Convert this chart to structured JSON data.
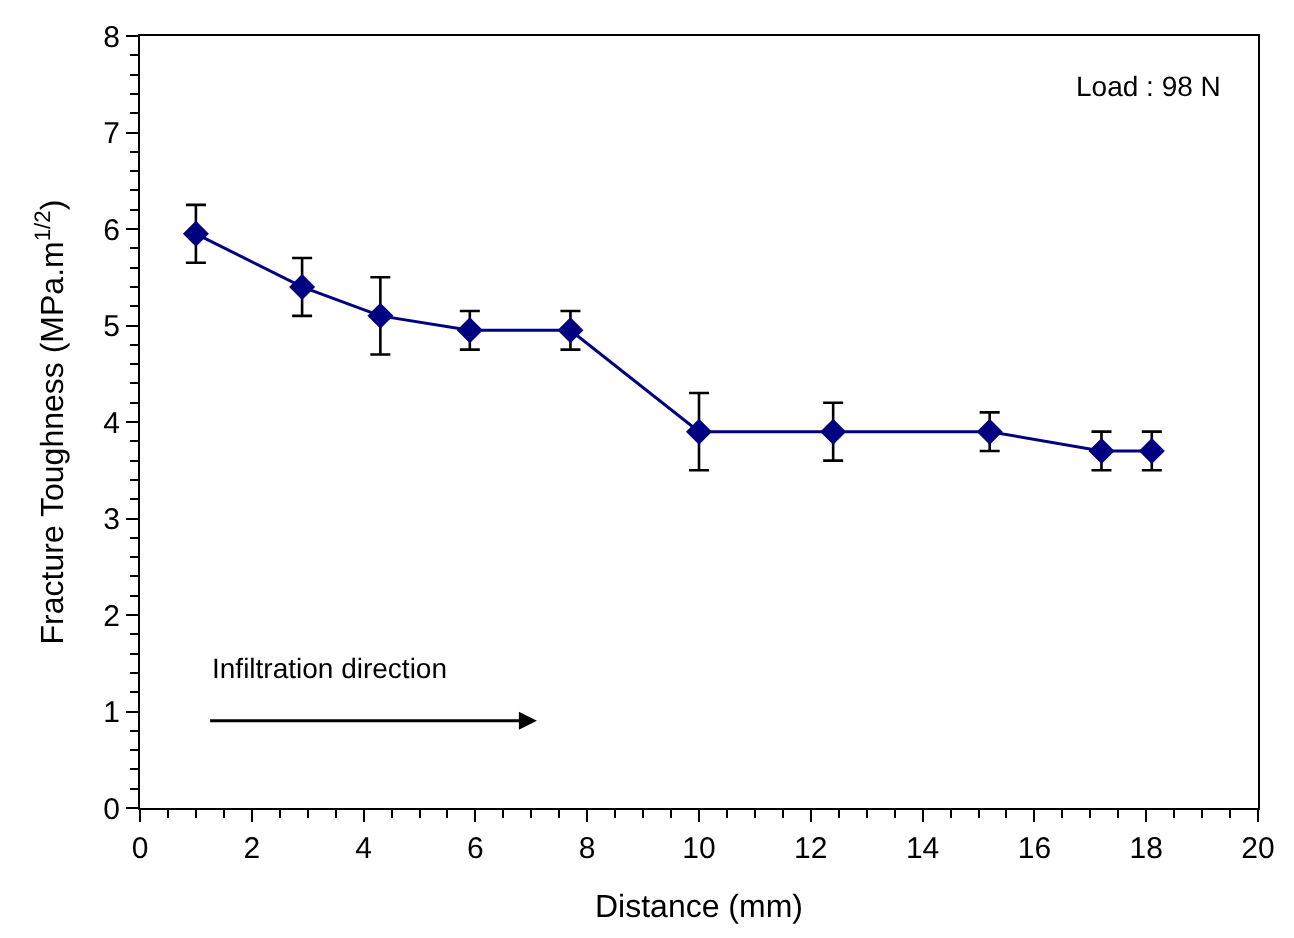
{
  "chart_data": {
    "type": "line",
    "xlabel": "Distance (mm)",
    "ylabel": "Fracture Toughness (MPa.m$^{1/2}$)",
    "x": [
      1,
      2.9,
      4.3,
      5.9,
      7.7,
      10,
      12.4,
      15.2,
      17.2,
      18.1
    ],
    "series": [
      {
        "color": "#000080",
        "values": [
          5.95,
          5.4,
          5.1,
          4.95,
          4.95,
          3.9,
          3.9,
          3.9,
          3.7,
          3.7
        ],
        "errors": [
          0.3,
          0.3,
          0.4,
          0.2,
          0.2,
          0.4,
          0.3,
          0.2,
          0.2,
          0.2
        ]
      }
    ],
    "xlim": [
      0,
      20
    ],
    "xticks": [
      0,
      2,
      4,
      6,
      8,
      10,
      12,
      14,
      16,
      18,
      20
    ],
    "ylim": [
      0,
      8
    ],
    "yticks": [
      0,
      1,
      2,
      3,
      4,
      5,
      6,
      7,
      8
    ],
    "marker": "diamond",
    "line_style": "solid",
    "annotations": [
      "Load : 98 N",
      "Infiltration direction"
    ]
  }
}
